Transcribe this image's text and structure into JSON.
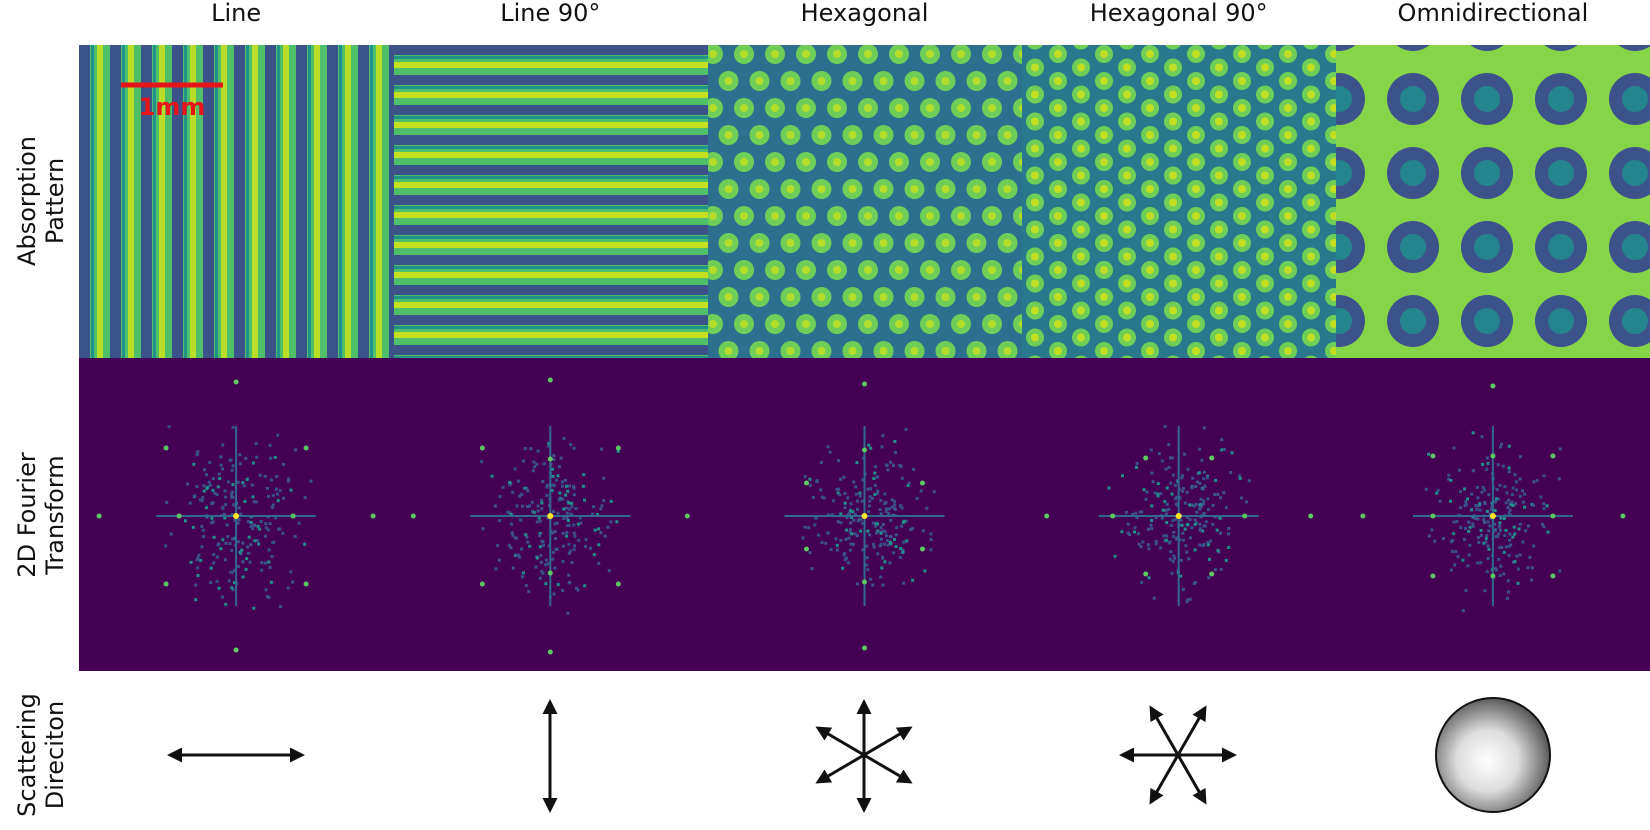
{
  "columns": [
    {
      "title": "Line"
    },
    {
      "title": "Line 90°"
    },
    {
      "title": "Hexagonal"
    },
    {
      "title": "Hexagonal 90°"
    },
    {
      "title": "Omnidirectional"
    }
  ],
  "rows": [
    {
      "lines": [
        "Absorption",
        "Pattern"
      ]
    },
    {
      "lines": [
        "2D Fourier",
        "Transform"
      ]
    },
    {
      "lines": [
        "Scattering",
        "Direciton"
      ]
    }
  ],
  "scale_bar": {
    "label": "1mm"
  }
}
